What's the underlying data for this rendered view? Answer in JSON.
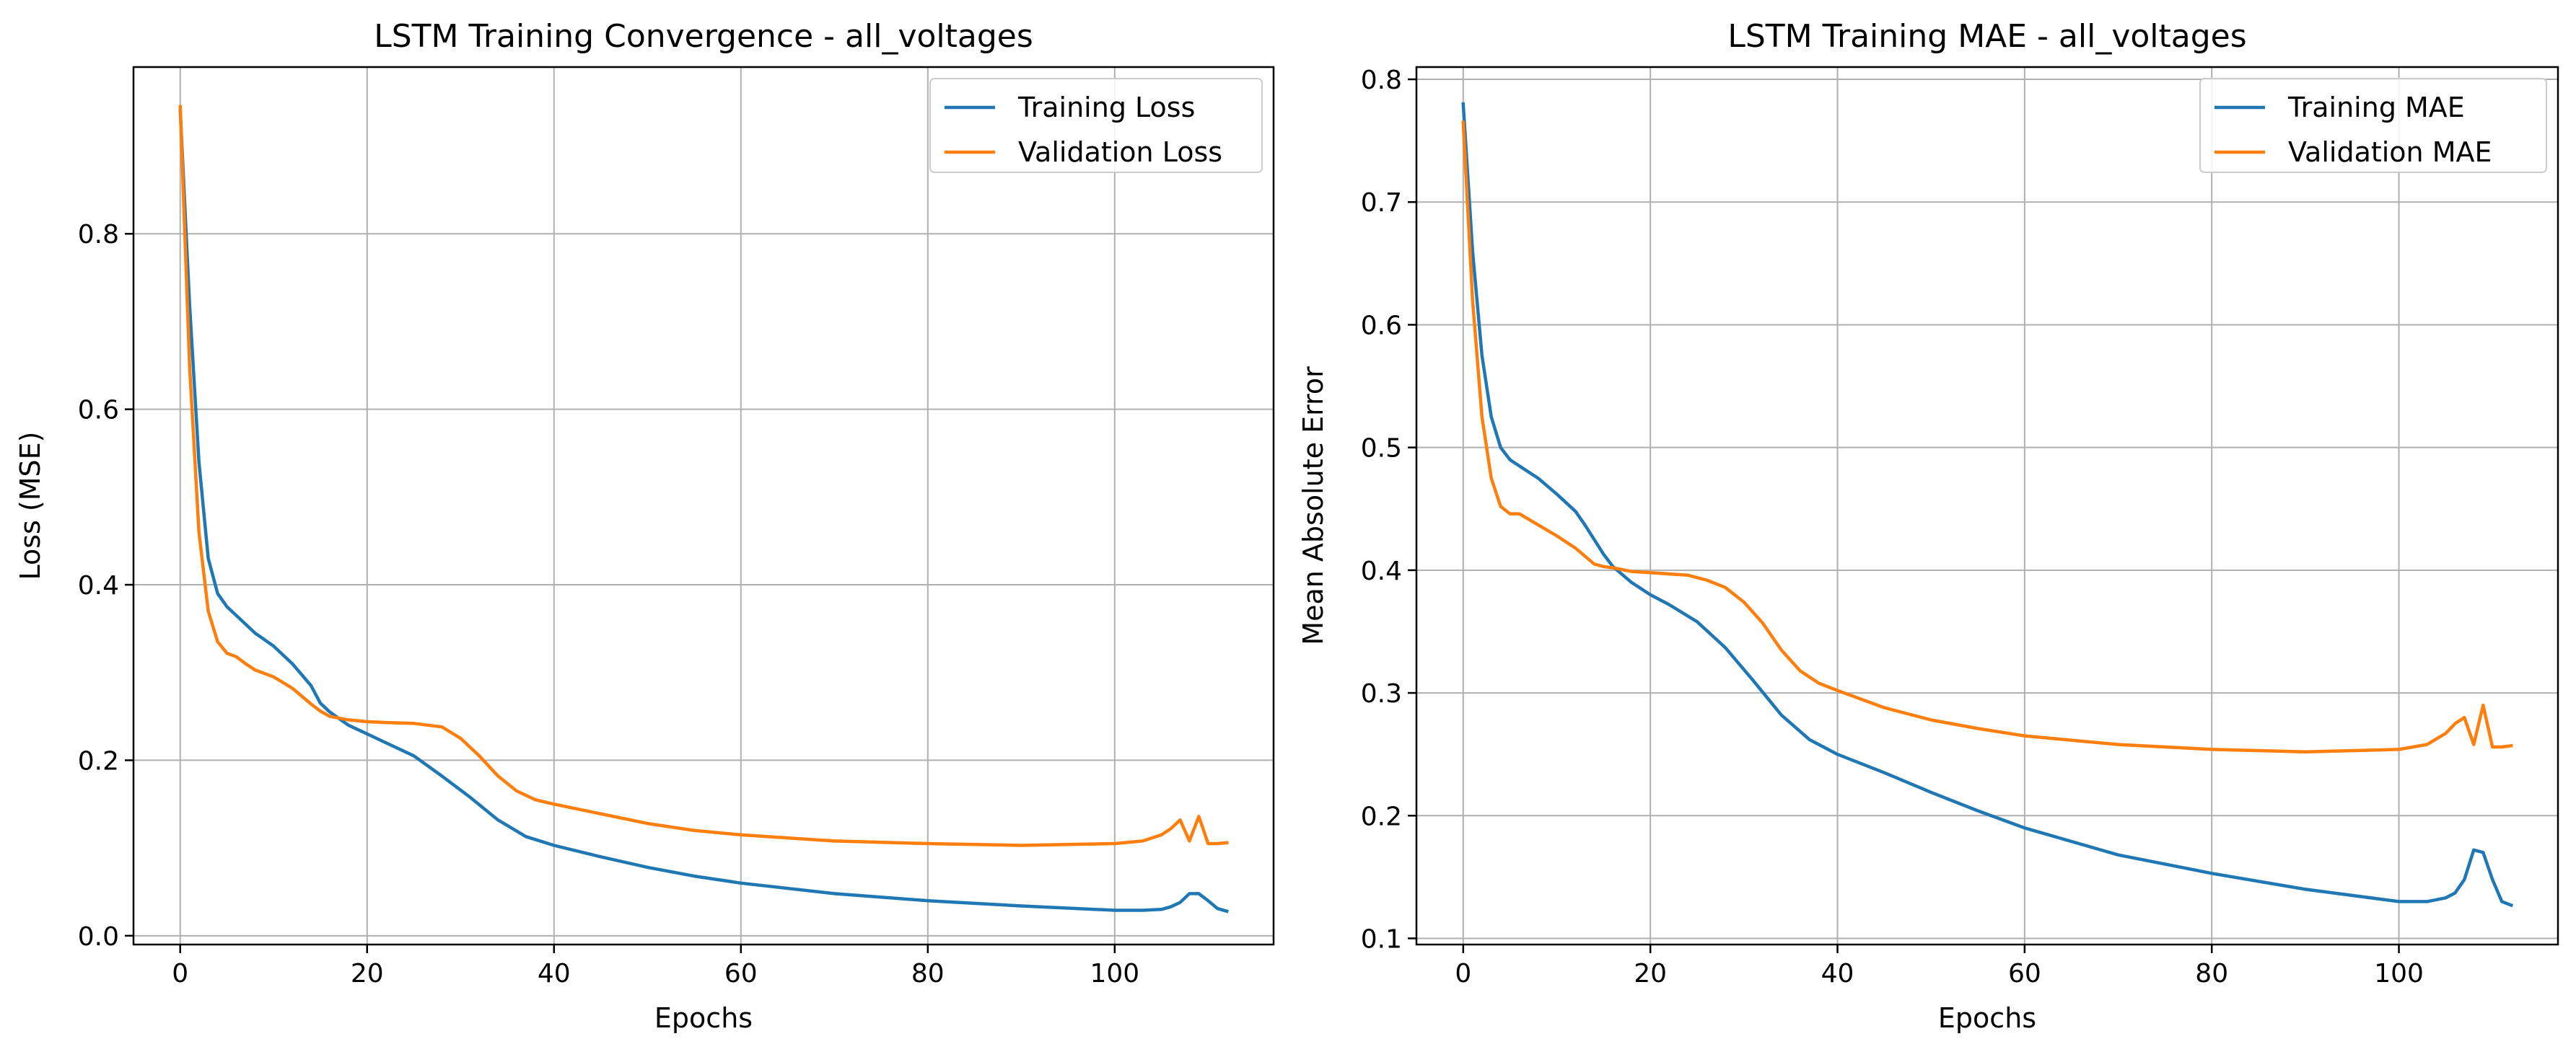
{
  "chart_data": [
    {
      "type": "line",
      "title": "LSTM Training Convergence - all_voltages",
      "xlabel": "Epochs",
      "ylabel": "Loss (MSE)",
      "xlim": [
        -5,
        117
      ],
      "ylim": [
        -0.01,
        0.99
      ],
      "xticks": [
        "0",
        "20",
        "40",
        "60",
        "80",
        "100"
      ],
      "yticks": [
        "0.0",
        "0.2",
        "0.4",
        "0.6",
        "0.8"
      ],
      "grid": true,
      "legend_position": "top-right",
      "series": [
        {
          "name": "Training Loss",
          "color": "#1f77b4",
          "x": [
            0,
            1,
            2,
            3,
            4,
            5,
            6,
            7,
            8,
            10,
            12,
            14,
            15,
            16,
            18,
            20,
            22,
            25,
            28,
            31,
            34,
            37,
            40,
            45,
            50,
            55,
            60,
            70,
            80,
            90,
            100,
            103,
            105,
            106,
            107,
            108,
            109,
            110,
            111,
            112
          ],
          "y": [
            0.94,
            0.72,
            0.54,
            0.43,
            0.39,
            0.375,
            0.365,
            0.355,
            0.345,
            0.33,
            0.31,
            0.285,
            0.265,
            0.255,
            0.24,
            0.23,
            0.22,
            0.205,
            0.182,
            0.158,
            0.132,
            0.113,
            0.103,
            0.09,
            0.078,
            0.068,
            0.06,
            0.048,
            0.04,
            0.034,
            0.029,
            0.029,
            0.03,
            0.033,
            0.038,
            0.048,
            0.048,
            0.04,
            0.031,
            0.028
          ]
        },
        {
          "name": "Validation Loss",
          "color": "#ff7f0e",
          "x": [
            0,
            1,
            2,
            3,
            4,
            5,
            6,
            7,
            8,
            10,
            12,
            14,
            15,
            16,
            18,
            20,
            22,
            25,
            28,
            30,
            32,
            34,
            36,
            38,
            40,
            45,
            50,
            55,
            60,
            70,
            80,
            90,
            100,
            103,
            105,
            106,
            107,
            108,
            109,
            110,
            111,
            112
          ],
          "y": [
            0.945,
            0.65,
            0.46,
            0.37,
            0.335,
            0.322,
            0.318,
            0.31,
            0.303,
            0.295,
            0.282,
            0.264,
            0.256,
            0.25,
            0.246,
            0.244,
            0.243,
            0.242,
            0.238,
            0.225,
            0.205,
            0.182,
            0.165,
            0.155,
            0.15,
            0.139,
            0.128,
            0.12,
            0.115,
            0.108,
            0.105,
            0.103,
            0.105,
            0.108,
            0.115,
            0.122,
            0.132,
            0.108,
            0.136,
            0.105,
            0.105,
            0.106
          ]
        }
      ]
    },
    {
      "type": "line",
      "title": "LSTM Training MAE - all_voltages",
      "xlabel": "Epochs",
      "ylabel": "Mean Absolute Error",
      "xlim": [
        -5,
        117
      ],
      "ylim": [
        0.095,
        0.81
      ],
      "xticks": [
        "0",
        "20",
        "40",
        "60",
        "80",
        "100"
      ],
      "yticks": [
        "0.1",
        "0.2",
        "0.3",
        "0.4",
        "0.5",
        "0.6",
        "0.7",
        "0.8"
      ],
      "grid": true,
      "legend_position": "top-right",
      "series": [
        {
          "name": "Training MAE",
          "color": "#1f77b4",
          "x": [
            0,
            1,
            2,
            3,
            4,
            5,
            6,
            8,
            10,
            12,
            13,
            14,
            15,
            16,
            18,
            20,
            22,
            25,
            28,
            31,
            34,
            37,
            40,
            45,
            50,
            55,
            60,
            70,
            80,
            90,
            100,
            103,
            105,
            106,
            107,
            108,
            109,
            110,
            111,
            112
          ],
          "y": [
            0.78,
            0.66,
            0.575,
            0.525,
            0.5,
            0.49,
            0.485,
            0.475,
            0.462,
            0.448,
            0.437,
            0.425,
            0.413,
            0.403,
            0.39,
            0.38,
            0.372,
            0.358,
            0.337,
            0.31,
            0.282,
            0.262,
            0.25,
            0.235,
            0.219,
            0.204,
            0.19,
            0.168,
            0.153,
            0.14,
            0.13,
            0.13,
            0.133,
            0.137,
            0.148,
            0.172,
            0.17,
            0.148,
            0.13,
            0.127
          ]
        },
        {
          "name": "Validation MAE",
          "color": "#ff7f0e",
          "x": [
            0,
            1,
            2,
            3,
            4,
            5,
            6,
            8,
            10,
            12,
            14,
            15,
            16,
            18,
            20,
            22,
            24,
            26,
            28,
            30,
            32,
            34,
            36,
            38,
            40,
            45,
            50,
            55,
            60,
            70,
            80,
            90,
            100,
            103,
            105,
            106,
            107,
            108,
            109,
            110,
            111,
            112
          ],
          "y": [
            0.765,
            0.62,
            0.525,
            0.475,
            0.452,
            0.446,
            0.446,
            0.437,
            0.428,
            0.418,
            0.405,
            0.403,
            0.402,
            0.399,
            0.398,
            0.397,
            0.396,
            0.392,
            0.386,
            0.374,
            0.357,
            0.335,
            0.318,
            0.308,
            0.302,
            0.288,
            0.278,
            0.271,
            0.265,
            0.258,
            0.254,
            0.252,
            0.254,
            0.258,
            0.267,
            0.275,
            0.28,
            0.258,
            0.29,
            0.256,
            0.256,
            0.257
          ]
        }
      ]
    }
  ]
}
